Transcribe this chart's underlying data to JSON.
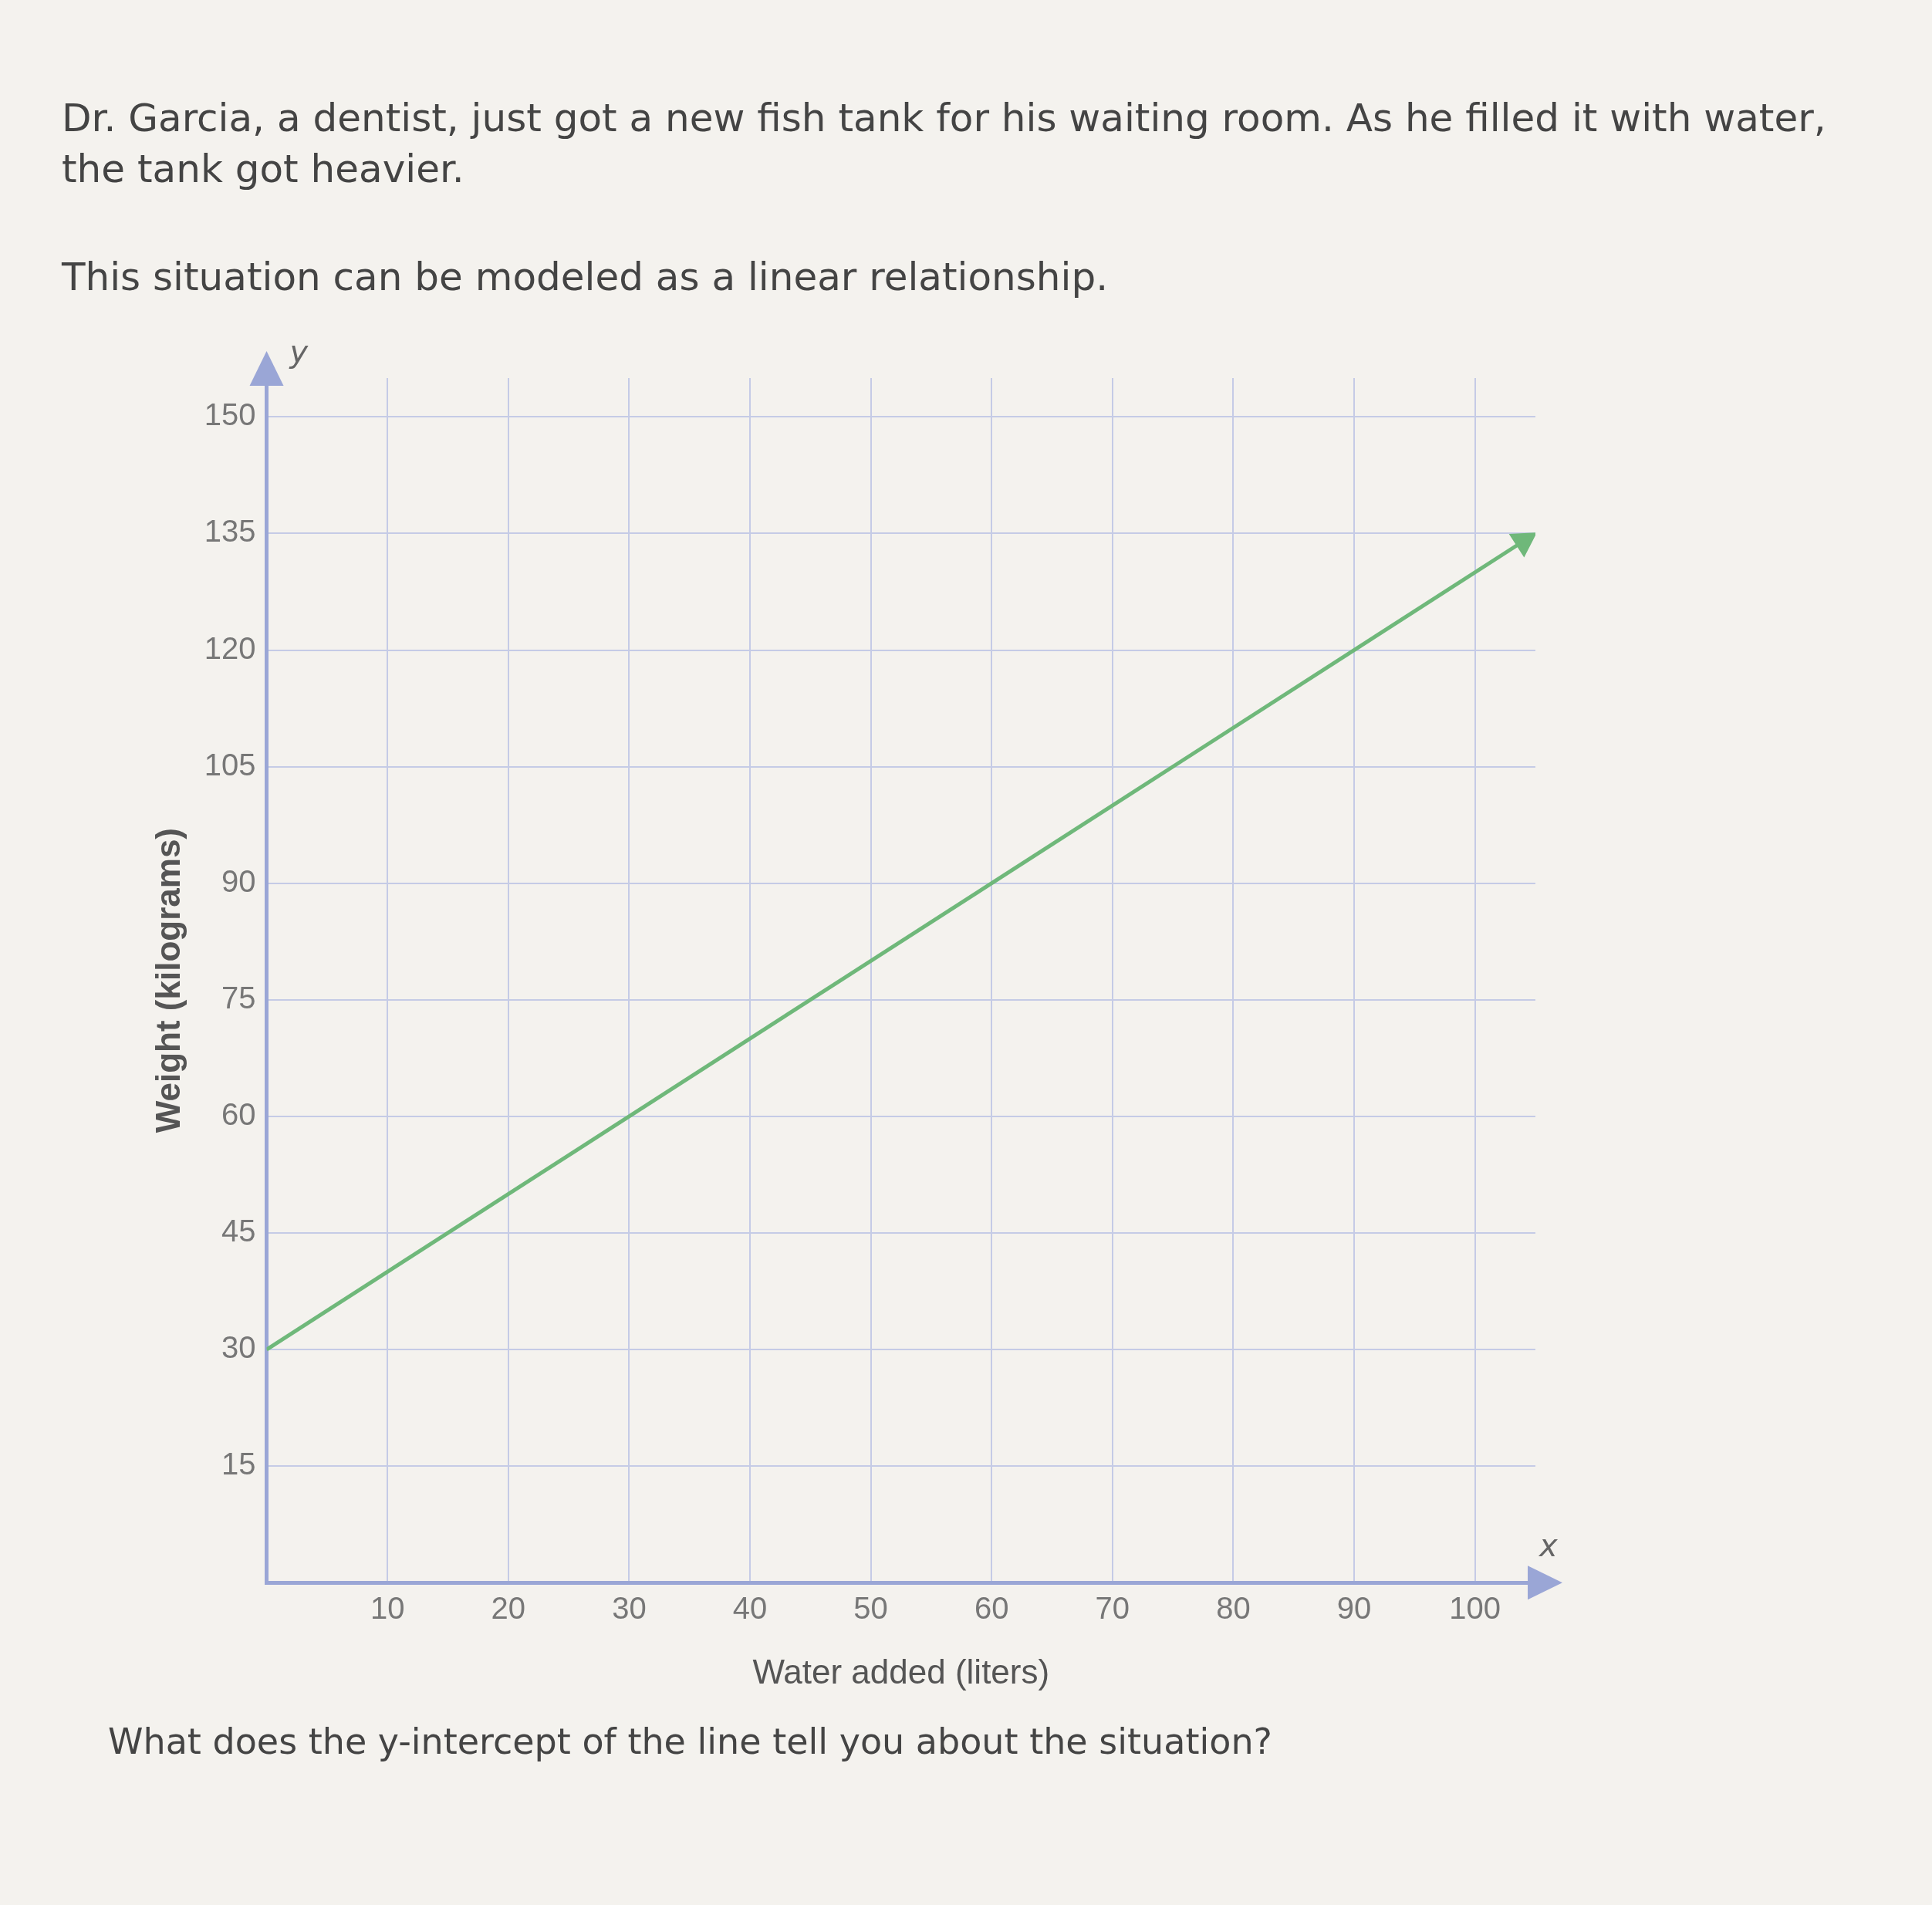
{
  "chart_data": {
    "type": "line",
    "title": "Dr. Garcia, a dentist, just got a new fish tank for his waiting room. As he filled it with water, the tank got heavier.",
    "subtitle": "This situation can be modeled as a linear relationship.",
    "xlabel": "Water added (liters)",
    "ylabel": "Weight (kilograms)",
    "annotations": [
      "y",
      "x",
      "What does the y-intercept of the line tell you about the situation?"
    ],
    "series": [
      {
        "color": "#6fb87a",
        "x": [
          0,
          104
        ],
        "values": [
          30,
          134
        ]
      }
    ],
    "xlim": [
      0,
      105
    ],
    "xticks": [
      10,
      20,
      30,
      40,
      50,
      60,
      70,
      80,
      90,
      100
    ],
    "ylim": [
      0,
      155
    ],
    "yticks": [
      15,
      30,
      45,
      60,
      75,
      90,
      105,
      120,
      135,
      150
    ],
    "grid": true,
    "legend": false,
    "line_style": "solid"
  }
}
